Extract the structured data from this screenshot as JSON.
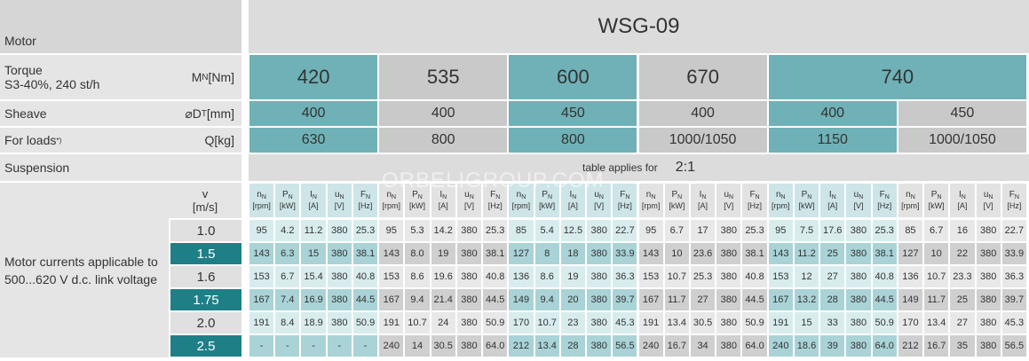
{
  "header": {
    "label": "Motor",
    "model": "WSG-09"
  },
  "torque": {
    "label": "Torque",
    "sublabel": "S3-40%, 240 st/h",
    "unit": {
      "symbol": "M",
      "sub": "N",
      "unit": "[Nm]"
    },
    "values": [
      "420",
      "535",
      "600",
      "670",
      "740"
    ]
  },
  "sheave": {
    "label": "Sheave",
    "unit": {
      "symbol": "⌀D",
      "sub": "T",
      "unit": "[mm]"
    },
    "values": [
      "400",
      "400",
      "450",
      "400",
      "400",
      "450"
    ]
  },
  "loads": {
    "label": "For loads",
    "note": "*)",
    "unit": {
      "symbol": "Q",
      "unit": "[kg]"
    },
    "values": [
      "630",
      "800",
      "800",
      "1000/1050",
      "1150",
      "1000/1050"
    ]
  },
  "suspension": {
    "label": "Suspension",
    "note": "table applies for",
    "value": "2:1"
  },
  "currents": {
    "label": "Motor currents applicable to 500...620 V d.c. link voltage",
    "v_header": {
      "symbol": "v",
      "unit": "[m/s]"
    },
    "columns": [
      {
        "symbol": "n",
        "sub": "N",
        "unit": "[rpm]"
      },
      {
        "symbol": "P",
        "sub": "N",
        "unit": "[kW]"
      },
      {
        "symbol": "I",
        "sub": "N",
        "unit": "[A]"
      },
      {
        "symbol": "u",
        "sub": "N",
        "unit": "[V]"
      },
      {
        "symbol": "F",
        "sub": "N",
        "unit": "[Hz]"
      }
    ],
    "rows": [
      {
        "v": "1.0",
        "values": [
          "95",
          "4.2",
          "11.2",
          "380",
          "25.3",
          "95",
          "5.3",
          "14.2",
          "380",
          "25.3",
          "85",
          "5.4",
          "12.5",
          "380",
          "22.7",
          "95",
          "6.7",
          "17",
          "380",
          "25.3",
          "95",
          "7.5",
          "17.6",
          "380",
          "25.3",
          "85",
          "6.7",
          "16",
          "380",
          "22.7"
        ]
      },
      {
        "v": "1.5",
        "values": [
          "143",
          "6.3",
          "15",
          "380",
          "38.1",
          "143",
          "8.0",
          "19",
          "380",
          "38.1",
          "127",
          "8",
          "18",
          "380",
          "33.9",
          "143",
          "10",
          "23.6",
          "380",
          "38.1",
          "143",
          "11.2",
          "25",
          "380",
          "38.1",
          "127",
          "10",
          "22",
          "380",
          "33.9"
        ]
      },
      {
        "v": "1.6",
        "values": [
          "153",
          "6.7",
          "15.4",
          "380",
          "40.8",
          "153",
          "8.6",
          "19.6",
          "380",
          "40.8",
          "136",
          "8.6",
          "19",
          "380",
          "36.3",
          "153",
          "10.7",
          "25.3",
          "380",
          "40.8",
          "153",
          "12",
          "27",
          "380",
          "40.8",
          "136",
          "10.7",
          "23.3",
          "380",
          "36.3"
        ]
      },
      {
        "v": "1.75",
        "values": [
          "167",
          "7.4",
          "16.9",
          "380",
          "44.5",
          "167",
          "9.4",
          "21.4",
          "380",
          "44.5",
          "149",
          "9.4",
          "20",
          "380",
          "39.7",
          "167",
          "11.7",
          "27",
          "380",
          "44.5",
          "167",
          "13.2",
          "28",
          "380",
          "44.5",
          "149",
          "11.7",
          "25",
          "380",
          "39.7"
        ]
      },
      {
        "v": "2.0",
        "values": [
          "191",
          "8.4",
          "18.9",
          "380",
          "50.9",
          "191",
          "10.7",
          "24",
          "380",
          "50.9",
          "170",
          "10.7",
          "23",
          "380",
          "45.3",
          "191",
          "13.4",
          "30.5",
          "380",
          "50.9",
          "191",
          "15",
          "33",
          "380",
          "50.9",
          "170",
          "13.4",
          "27",
          "380",
          "45.3"
        ]
      },
      {
        "v": "2.5",
        "values": [
          "-",
          "-",
          "-",
          "-",
          "-",
          "240",
          "14",
          "30.5",
          "380",
          "64.0",
          "212",
          "13.4",
          "28",
          "380",
          "56.5",
          "240",
          "16.7",
          "34",
          "380",
          "64.0",
          "240",
          "18.6",
          "39",
          "380",
          "64.0",
          "212",
          "16.7",
          "35",
          "380",
          "56.5"
        ]
      }
    ]
  },
  "watermark": "ORBELIGROUP.COM"
}
